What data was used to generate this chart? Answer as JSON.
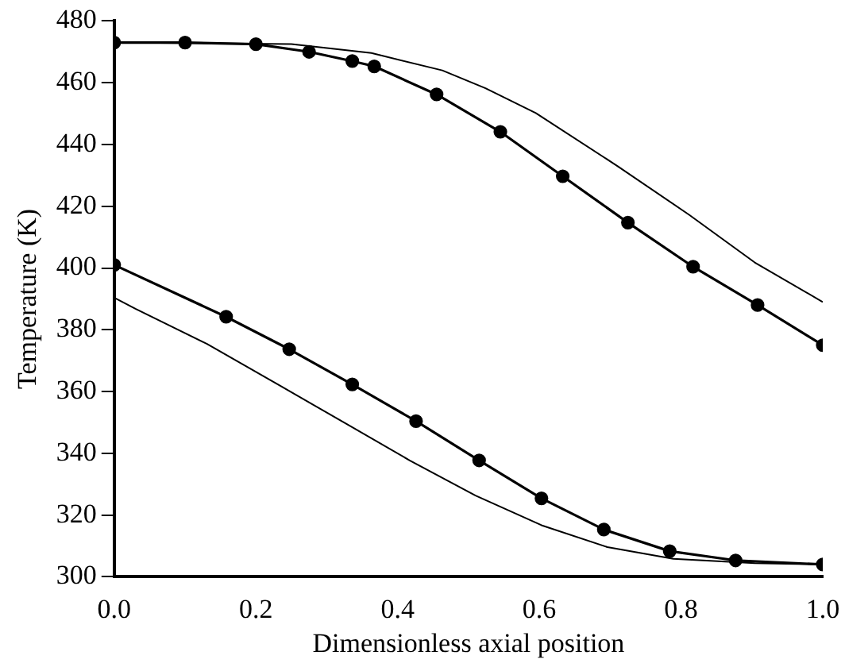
{
  "chart_data": {
    "type": "line",
    "xlabel": "Dimensionless axial position",
    "ylabel": "Temperature (K)",
    "xlim": [
      0,
      1
    ],
    "ylim": [
      300,
      480
    ],
    "xticks": [
      {
        "value": 0,
        "label": "0.0"
      },
      0.2,
      0.4,
      0.6,
      0.8,
      {
        "value": 1,
        "label": "1.0"
      }
    ],
    "yticks": [
      300,
      320,
      340,
      360,
      380,
      400,
      420,
      440,
      460,
      480
    ],
    "grid": false,
    "legend": false,
    "line_style": "solid",
    "series": [
      {
        "color": "#000000",
        "marker": "circle",
        "x": [
          0,
          0.1,
          0.2,
          0.275,
          0.336,
          0.367,
          0.455,
          0.545,
          0.633,
          0.725,
          0.817,
          0.908,
          1.0
        ],
        "values": [
          473,
          473,
          472.5,
          470,
          467,
          465.3,
          456.2,
          444.1,
          429.7,
          414.7,
          400.4,
          388,
          375
        ]
      },
      {
        "color": "#000000",
        "marker": "none",
        "x": [
          0,
          0.25,
          0.363,
          0.463,
          0.524,
          0.595,
          0.711,
          0.811,
          0.904,
          1.0
        ],
        "values": [
          473,
          472.5,
          469.6,
          464,
          458.2,
          450.2,
          432.9,
          417.3,
          401.8,
          389
        ]
      },
      {
        "color": "#000000",
        "marker": "circle",
        "x": [
          0,
          0.158,
          0.247,
          0.336,
          0.426,
          0.515,
          0.603,
          0.691,
          0.784,
          0.877,
          1.0
        ],
        "values": [
          401,
          384.2,
          373.7,
          362.3,
          350.4,
          337.7,
          325.4,
          315.3,
          308.3,
          305.3,
          304
        ]
      },
      {
        "color": "#000000",
        "marker": "none",
        "x": [
          0,
          0.03,
          0.131,
          0.231,
          0.324,
          0.417,
          0.51,
          0.603,
          0.696,
          0.789,
          0.904,
          1.0
        ],
        "values": [
          390.4,
          386.8,
          375.4,
          362.3,
          350,
          337.7,
          326.3,
          316.7,
          309.6,
          305.8,
          304.4,
          304
        ]
      }
    ]
  }
}
